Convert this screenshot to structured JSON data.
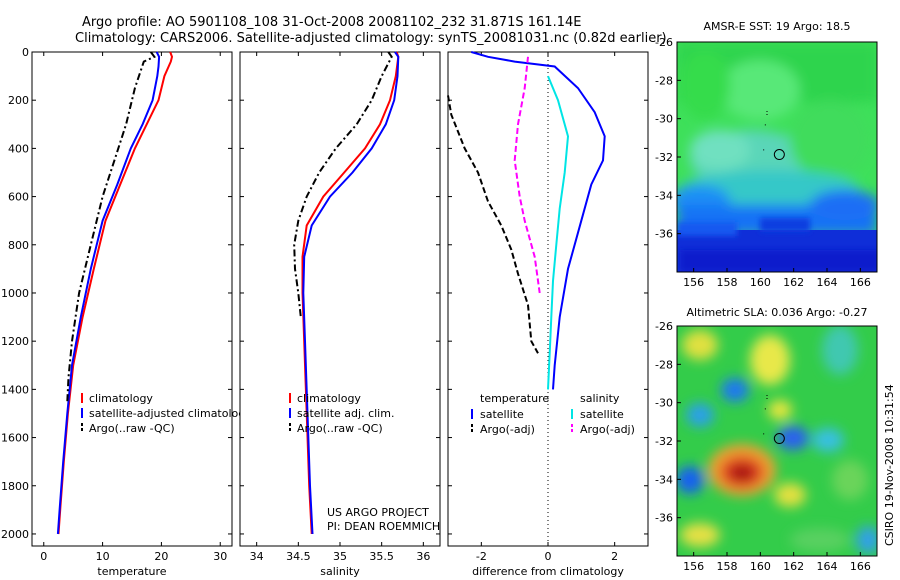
{
  "header": {
    "line1": "Argo profile: AO 5901108_108 31-Oct-2008 20081102_232 31.871S 161.14E",
    "line2": "Climatology: CARS2006. Satellite-adjusted climatology: synTS_20081031.nc (0.82d earlier)"
  },
  "side_label": "CSIRO 19-Nov-2008 10:31:54",
  "credit": {
    "line1": "US ARGO PROJECT",
    "line2": "PI: DEAN ROEMMICH"
  },
  "colors": {
    "red": "#ff0000",
    "blue": "#0000ff",
    "black": "#000000",
    "cyan": "#00e5e5",
    "magenta": "#ff00ff"
  },
  "chart_data": [
    {
      "type": "line",
      "xlabel": "temperature",
      "xlim": [
        -2,
        32
      ],
      "xticks": [
        0,
        10,
        20,
        30
      ],
      "ylim": [
        0,
        2050
      ],
      "yticks": [
        0,
        200,
        400,
        600,
        800,
        1000,
        1200,
        1400,
        1600,
        1800,
        2000
      ],
      "y_reversed": true,
      "legend": [
        "climatology",
        "satellite-adjusted climatology",
        "Argo(..raw -QC)"
      ],
      "series": [
        {
          "name": "climatology",
          "color": "red",
          "dash": "solid",
          "points": [
            [
              21.5,
              0
            ],
            [
              21.8,
              20
            ],
            [
              21.6,
              40
            ],
            [
              20.5,
              100
            ],
            [
              19.5,
              200
            ],
            [
              17.5,
              300
            ],
            [
              15.5,
              400
            ],
            [
              13,
              550
            ],
            [
              10.5,
              700
            ],
            [
              8.5,
              900
            ],
            [
              6.6,
              1100
            ],
            [
              5.0,
              1300
            ],
            [
              4.1,
              1500
            ],
            [
              3.4,
              1700
            ],
            [
              2.8,
              1900
            ],
            [
              2.5,
              2000
            ]
          ]
        },
        {
          "name": "satellite-adjusted climatology",
          "color": "blue",
          "dash": "solid",
          "points": [
            [
              19.2,
              0
            ],
            [
              19.6,
              20
            ],
            [
              19.5,
              60
            ],
            [
              19.3,
              100
            ],
            [
              18.5,
              200
            ],
            [
              16.8,
              300
            ],
            [
              14.8,
              400
            ],
            [
              12.5,
              550
            ],
            [
              10,
              700
            ],
            [
              8,
              900
            ],
            [
              6.3,
              1100
            ],
            [
              4.8,
              1300
            ],
            [
              4.0,
              1500
            ],
            [
              3.3,
              1700
            ],
            [
              2.7,
              1900
            ],
            [
              2.4,
              2000
            ]
          ]
        },
        {
          "name": "Argo(..raw -QC)",
          "color": "black",
          "dash": "dashdot",
          "points": [
            [
              18.2,
              0
            ],
            [
              18.8,
              20
            ],
            [
              17.0,
              40
            ],
            [
              15.5,
              150
            ],
            [
              14,
              300
            ],
            [
              12,
              450
            ],
            [
              10,
              600
            ],
            [
              8.0,
              800
            ],
            [
              6.0,
              1000
            ],
            [
              4.8,
              1200
            ],
            [
              4.2,
              1350
            ],
            [
              4.0,
              1450
            ]
          ]
        }
      ]
    },
    {
      "type": "line",
      "xlabel": "salinity",
      "xlim": [
        33.8,
        36.2
      ],
      "xticks": [
        34,
        34.5,
        35,
        35.5,
        36
      ],
      "ylim": [
        0,
        2050
      ],
      "y_reversed": true,
      "legend": [
        "climatology",
        "satellite adj. clim.",
        "Argo(..raw -QC)"
      ],
      "series": [
        {
          "name": "climatology",
          "color": "red",
          "dash": "solid",
          "points": [
            [
              35.68,
              0
            ],
            [
              35.7,
              20
            ],
            [
              35.67,
              100
            ],
            [
              35.6,
              200
            ],
            [
              35.48,
              300
            ],
            [
              35.3,
              400
            ],
            [
              35.05,
              500
            ],
            [
              34.8,
              600
            ],
            [
              34.6,
              720
            ],
            [
              34.55,
              850
            ],
            [
              34.55,
              1000
            ],
            [
              34.57,
              1200
            ],
            [
              34.6,
              1500
            ],
            [
              34.63,
              1800
            ],
            [
              34.66,
              2000
            ]
          ]
        },
        {
          "name": "satellite adj. clim.",
          "color": "blue",
          "dash": "solid",
          "points": [
            [
              35.66,
              0
            ],
            [
              35.7,
              20
            ],
            [
              35.69,
              100
            ],
            [
              35.65,
              200
            ],
            [
              35.55,
              300
            ],
            [
              35.38,
              400
            ],
            [
              35.15,
              500
            ],
            [
              34.88,
              600
            ],
            [
              34.66,
              720
            ],
            [
              34.57,
              850
            ],
            [
              34.56,
              1000
            ],
            [
              34.58,
              1200
            ],
            [
              34.61,
              1500
            ],
            [
              34.64,
              1800
            ],
            [
              34.67,
              2000
            ]
          ]
        },
        {
          "name": "Argo(..raw -QC)",
          "color": "black",
          "dash": "dashdot",
          "points": [
            [
              35.58,
              0
            ],
            [
              35.62,
              20
            ],
            [
              35.5,
              100
            ],
            [
              35.38,
              200
            ],
            [
              35.2,
              300
            ],
            [
              34.95,
              400
            ],
            [
              34.75,
              500
            ],
            [
              34.6,
              600
            ],
            [
              34.5,
              700
            ],
            [
              34.45,
              800
            ],
            [
              34.46,
              900
            ],
            [
              34.5,
              1000
            ],
            [
              34.53,
              1100
            ]
          ]
        }
      ]
    },
    {
      "type": "line",
      "xlabel": "difference from climatology",
      "xlim": [
        -3,
        3
      ],
      "xticks": [
        -2,
        0,
        2
      ],
      "ylim": [
        0,
        2050
      ],
      "y_reversed": true,
      "zero_line": "dotted",
      "legend_groups": [
        {
          "title": "temperature",
          "entries": [
            "satellite",
            "Argo(-adj)"
          ]
        },
        {
          "title": "salinity",
          "entries": [
            "satellite",
            "Argo(-adj)"
          ]
        }
      ],
      "series": [
        {
          "name": "temperature satellite",
          "color": "blue",
          "dash": "solid",
          "points": [
            [
              -2.3,
              0
            ],
            [
              -1.8,
              20
            ],
            [
              -1.0,
              40
            ],
            [
              0.2,
              60
            ],
            [
              0.9,
              150
            ],
            [
              1.4,
              250
            ],
            [
              1.7,
              350
            ],
            [
              1.65,
              450
            ],
            [
              1.3,
              550
            ],
            [
              1.0,
              700
            ],
            [
              0.6,
              900
            ],
            [
              0.35,
              1100
            ],
            [
              0.2,
              1300
            ],
            [
              0.15,
              1400
            ]
          ]
        },
        {
          "name": "temperature Argo(-adj)",
          "color": "black",
          "dash": "dashed",
          "points": [
            [
              -3,
              180
            ],
            [
              -2.9,
              260
            ],
            [
              -2.5,
              400
            ],
            [
              -2.1,
              500
            ],
            [
              -1.8,
              620
            ],
            [
              -1.4,
              720
            ],
            [
              -1.1,
              820
            ],
            [
              -0.9,
              920
            ],
            [
              -0.6,
              1050
            ],
            [
              -0.5,
              1200
            ],
            [
              -0.3,
              1250
            ]
          ]
        },
        {
          "name": "salinity satellite",
          "color": "cyan",
          "dash": "solid",
          "points": [
            [
              0.0,
              100
            ],
            [
              0.3,
              200
            ],
            [
              0.6,
              350
            ],
            [
              0.5,
              500
            ],
            [
              0.35,
              650
            ],
            [
              0.25,
              800
            ],
            [
              0.15,
              950
            ],
            [
              0.1,
              1100
            ],
            [
              0.05,
              1250
            ],
            [
              0.0,
              1400
            ]
          ]
        },
        {
          "name": "salinity Argo(-adj)",
          "color": "magenta",
          "dash": "dashed",
          "points": [
            [
              -0.6,
              20
            ],
            [
              -0.7,
              150
            ],
            [
              -0.9,
              300
            ],
            [
              -1.0,
              450
            ],
            [
              -0.85,
              600
            ],
            [
              -0.7,
              700
            ],
            [
              -0.4,
              850
            ],
            [
              -0.25,
              1000
            ]
          ]
        }
      ]
    },
    {
      "type": "heatmap",
      "title": "AMSR-E SST: 19 Argo: 18.5",
      "xticks": [
        156,
        158,
        160,
        162,
        164,
        166
      ],
      "yticks": [
        -26,
        -28,
        -30,
        -32,
        -34,
        -36
      ],
      "xlim": [
        155,
        167
      ],
      "ylim": [
        -38,
        -26
      ],
      "float_position": [
        161.14,
        -31.87
      ]
    },
    {
      "type": "heatmap",
      "title": "Altimetric SLA: 0.036 Argo: -0.27",
      "xticks": [
        156,
        158,
        160,
        162,
        164,
        166
      ],
      "yticks": [
        -26,
        -28,
        -30,
        -32,
        -34,
        -36
      ],
      "xlim": [
        155,
        167
      ],
      "ylim": [
        -38,
        -26
      ],
      "float_position": [
        161.14,
        -31.87
      ]
    }
  ]
}
